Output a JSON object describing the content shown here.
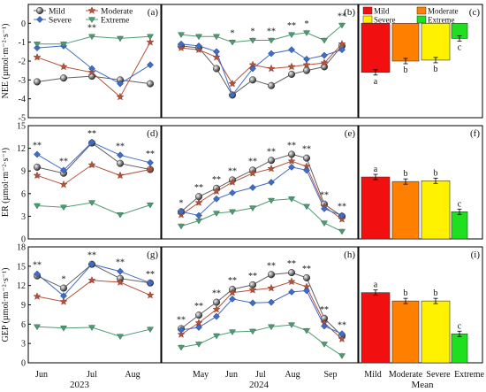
{
  "figure": {
    "rows": [
      {
        "key": "nee",
        "ylabel": "NEE (µmol·m⁻²·s⁻¹)",
        "ylim": [
          -5,
          1
        ],
        "yticks": [
          -5,
          -4,
          -3,
          -2,
          -1,
          0
        ]
      },
      {
        "key": "er",
        "ylabel": "ER (µmol·m⁻²·s⁻¹)",
        "ylim": [
          0,
          15
        ],
        "yticks": [
          0,
          3,
          6,
          9,
          12,
          15
        ]
      },
      {
        "key": "gep",
        "ylabel": "GEP (µmol·m⁻²·s⁻¹)",
        "ylim": [
          0,
          18
        ],
        "yticks": [
          0,
          3,
          6,
          9,
          12,
          15,
          18
        ]
      }
    ],
    "panel_letters": [
      "(a)",
      "(b)",
      "(c)",
      "(d)",
      "(e)",
      "(f)",
      "(g)",
      "(h)",
      "(i)"
    ],
    "series": [
      {
        "name": "Mild",
        "color": "#606060",
        "marker": "sphere"
      },
      {
        "name": "Moderate",
        "color": "#B5523B",
        "marker": "star"
      },
      {
        "name": "Severe",
        "color": "#3F6BC9",
        "marker": "diamond"
      },
      {
        "name": "Extreme",
        "color": "#4F9A73",
        "marker": "triangle-down"
      }
    ],
    "bar_colors": [
      "#F20F0F",
      "#FF7F00",
      "#FFF200",
      "#1EE01E"
    ],
    "year_labels": {
      "left": "2023",
      "middle": "2024"
    },
    "mean_label": "Mean"
  },
  "chart_data": [
    {
      "panel": "(a)",
      "type": "line",
      "ylabel": "NEE (µmol·m⁻²·s⁻¹)",
      "ylim": [
        -5,
        1
      ],
      "x_ticks": [
        "Jun",
        "Jul",
        "Aug"
      ],
      "series": [
        {
          "name": "Mild",
          "values": [
            -3.1,
            -2.9,
            -2.8,
            -3.0,
            -3.2
          ]
        },
        {
          "name": "Moderate",
          "values": [
            -1.8,
            -2.3,
            -2.6,
            -3.9,
            -1.0
          ]
        },
        {
          "name": "Severe",
          "values": [
            -1.3,
            -1.2,
            -2.4,
            -3.2,
            -2.2
          ]
        },
        {
          "name": "Extreme",
          "values": [
            -1.1,
            -1.1,
            -0.7,
            -0.8,
            -0.7
          ]
        }
      ],
      "significance": [
        "",
        "",
        "**",
        "",
        ""
      ]
    },
    {
      "panel": "(b)",
      "type": "line",
      "ylabel": "NEE (µmol·m⁻²·s⁻¹)",
      "ylim": [
        -5,
        1
      ],
      "x_ticks": [
        "May",
        "Jun",
        "Jul",
        "Aug",
        "Sep"
      ],
      "series": [
        {
          "name": "Mild",
          "values": [
            -1.2,
            -1.3,
            -2.4,
            -3.8,
            -3.0,
            -3.3,
            -2.7,
            -2.5,
            -2.3,
            -1.2
          ]
        },
        {
          "name": "Moderate",
          "values": [
            -1.3,
            -1.4,
            -1.8,
            -3.2,
            -2.2,
            -2.4,
            -2.3,
            -2.2,
            -2.1,
            -1.1
          ]
        },
        {
          "name": "Severe",
          "values": [
            -1.1,
            -1.2,
            -1.5,
            -3.8,
            -2.4,
            -1.6,
            -1.4,
            -1.9,
            -1.7,
            -1.4
          ]
        },
        {
          "name": "Extreme",
          "values": [
            -0.6,
            -0.7,
            -0.7,
            -1.0,
            -0.9,
            -0.9,
            -0.6,
            -0.5,
            -0.9,
            -0.1
          ]
        }
      ],
      "significance": [
        "",
        "",
        "",
        "*",
        "*",
        "**",
        "**",
        "*",
        "",
        "**"
      ]
    },
    {
      "panel": "(c)",
      "type": "bar",
      "ylim": [
        -5,
        1
      ],
      "categories": [
        "Mild",
        "Moderate",
        "Severe",
        "Extreme"
      ],
      "values": [
        -2.6,
        -2.0,
        -1.95,
        -0.8
      ],
      "letters": [
        "a",
        "b",
        "b",
        "c"
      ]
    },
    {
      "panel": "(d)",
      "type": "line",
      "ylabel": "ER (µmol·m⁻²·s⁻¹)",
      "ylim": [
        0,
        15
      ],
      "x_ticks": [
        "Jun",
        "Jul",
        "Aug"
      ],
      "series": [
        {
          "name": "Mild",
          "values": [
            9.5,
            8.7,
            12.7,
            10.0,
            9.2
          ]
        },
        {
          "name": "Moderate",
          "values": [
            8.4,
            7.2,
            9.8,
            8.4,
            9.2
          ]
        },
        {
          "name": "Severe",
          "values": [
            11.2,
            9.1,
            12.8,
            11.1,
            10.1
          ]
        },
        {
          "name": "Extreme",
          "values": [
            4.4,
            4.2,
            4.8,
            3.2,
            4.5
          ]
        }
      ],
      "significance": [
        "**",
        "**",
        "**",
        "**",
        "**"
      ]
    },
    {
      "panel": "(e)",
      "type": "line",
      "ylabel": "ER (µmol·m⁻²·s⁻¹)",
      "ylim": [
        0,
        15
      ],
      "x_ticks": [
        "May",
        "Jun",
        "Jul",
        "Aug",
        "Sep"
      ],
      "series": [
        {
          "name": "Mild",
          "values": [
            3.6,
            5.6,
            6.7,
            7.8,
            9.1,
            10.4,
            11.2,
            10.7,
            4.6,
            3.0
          ]
        },
        {
          "name": "Moderate",
          "values": [
            3.2,
            4.8,
            6.3,
            7.5,
            8.7,
            9.3,
            10.3,
            9.6,
            4.3,
            2.6
          ]
        },
        {
          "name": "Severe",
          "values": [
            3.6,
            3.1,
            5.3,
            6.1,
            6.8,
            7.5,
            9.5,
            9.1,
            4.0,
            3.1
          ]
        },
        {
          "name": "Extreme",
          "values": [
            1.7,
            2.4,
            3.4,
            3.6,
            4.1,
            5.1,
            5.3,
            4.3,
            2.1,
            1.0
          ]
        }
      ],
      "significance": [
        "*",
        "**",
        "**",
        "**",
        "**",
        "**",
        "**",
        "**",
        "**",
        "**"
      ]
    },
    {
      "panel": "(f)",
      "type": "bar",
      "ylim": [
        0,
        15
      ],
      "categories": [
        "Mild",
        "Moderate",
        "Severe",
        "Extreme"
      ],
      "values": [
        8.2,
        7.6,
        7.7,
        3.6
      ],
      "letters": [
        "a",
        "b",
        "b",
        "c"
      ]
    },
    {
      "panel": "(g)",
      "type": "line",
      "ylabel": "GEP (µmol·m⁻²·s⁻¹)",
      "ylim": [
        0,
        18
      ],
      "x_ticks": [
        "Jun",
        "Jul",
        "Aug"
      ],
      "series": [
        {
          "name": "Mild",
          "values": [
            13.5,
            11.6,
            15.3,
            13.1,
            12.4
          ]
        },
        {
          "name": "Moderate",
          "values": [
            10.3,
            9.5,
            12.8,
            12.5,
            10.5
          ]
        },
        {
          "name": "Severe",
          "values": [
            13.8,
            10.4,
            15.3,
            14.2,
            12.4
          ]
        },
        {
          "name": "Extreme",
          "values": [
            5.6,
            5.4,
            5.5,
            4.1,
            5.2
          ]
        }
      ],
      "significance": [
        "**",
        "*",
        "**",
        "**",
        "**"
      ]
    },
    {
      "panel": "(h)",
      "type": "line",
      "ylabel": "GEP (µmol·m⁻²·s⁻¹)",
      "ylim": [
        0,
        18
      ],
      "x_ticks": [
        "May",
        "Jun",
        "Jul",
        "Aug",
        "Sep"
      ],
      "series": [
        {
          "name": "Mild",
          "values": [
            5.3,
            7.4,
            9.4,
            11.4,
            12.1,
            13.7,
            14.0,
            13.2,
            6.9,
            4.2
          ]
        },
        {
          "name": "Moderate",
          "values": [
            4.4,
            6.2,
            8.3,
            10.9,
            11.3,
            11.6,
            12.6,
            11.8,
            6.2,
            3.7
          ]
        },
        {
          "name": "Severe",
          "values": [
            5.1,
            5.5,
            7.2,
            9.9,
            9.3,
            9.4,
            11.0,
            11.2,
            5.7,
            4.5
          ]
        },
        {
          "name": "Extreme",
          "values": [
            2.4,
            2.9,
            4.2,
            4.8,
            4.9,
            5.6,
            5.9,
            5.0,
            2.9,
            1.1
          ]
        }
      ],
      "significance": [
        "**",
        "**",
        "**",
        "**",
        "**",
        "**",
        "**",
        "**",
        "**",
        "**"
      ]
    },
    {
      "panel": "(i)",
      "type": "bar",
      "ylim": [
        0,
        18
      ],
      "categories": [
        "Mild",
        "Moderate",
        "Severe",
        "Extreme"
      ],
      "values": [
        10.9,
        9.6,
        9.6,
        4.5
      ],
      "letters": [
        "a",
        "b",
        "b",
        "c"
      ]
    }
  ]
}
